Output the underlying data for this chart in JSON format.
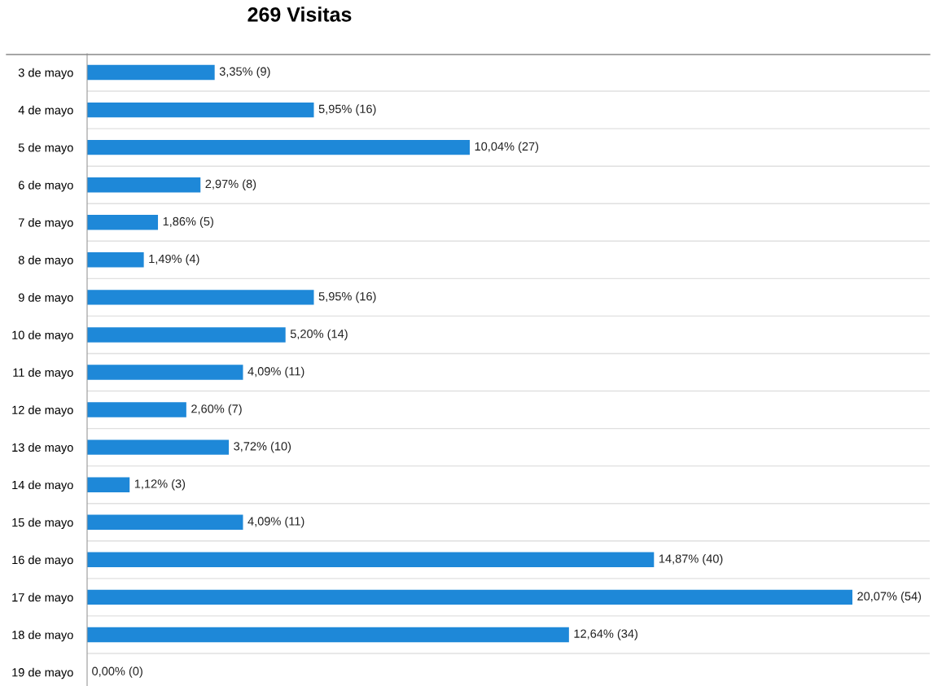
{
  "chart_data": {
    "type": "bar",
    "orientation": "horizontal",
    "title": "269 Visitas",
    "categories": [
      "3 de mayo",
      "4 de mayo",
      "5 de mayo",
      "6 de mayo",
      "7 de mayo",
      "8 de mayo",
      "9 de mayo",
      "10 de mayo",
      "11 de mayo",
      "12 de mayo",
      "13 de mayo",
      "14 de mayo",
      "15 de mayo",
      "16 de mayo",
      "17 de mayo",
      "18 de mayo",
      "19 de mayo"
    ],
    "values": [
      9,
      16,
      27,
      8,
      5,
      4,
      16,
      14,
      11,
      7,
      10,
      3,
      11,
      40,
      54,
      34,
      0
    ],
    "value_labels": [
      "3,35% (9)",
      "5,95% (16)",
      "10,04% (27)",
      "2,97% (8)",
      "1,86% (5)",
      "1,49% (4)",
      "5,95% (16)",
      "5,20% (14)",
      "4,09% (11)",
      "2,60% (7)",
      "3,72% (10)",
      "1,12% (3)",
      "4,09% (11)",
      "14,87% (40)",
      "20,07% (54)",
      "12,64% (34)",
      "0,00% (0)"
    ],
    "color": "#1e88d8",
    "grid": "y",
    "legend": false
  }
}
